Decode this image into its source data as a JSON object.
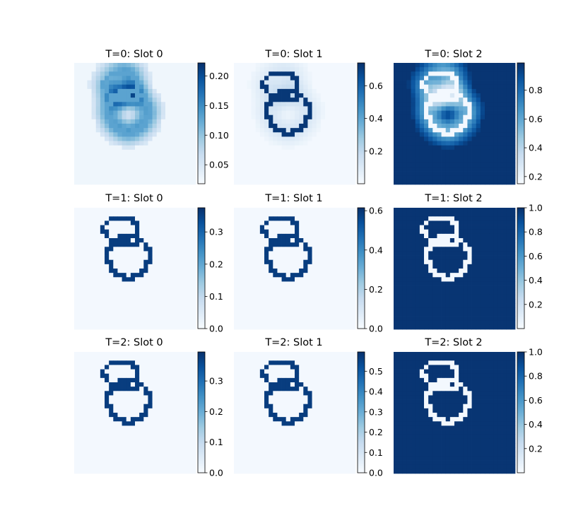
{
  "colormap": {
    "name": "Blues",
    "stops": [
      "#f7fbff",
      "#deebf7",
      "#c6dbef",
      "#9ecae1",
      "#6baed6",
      "#4292c6",
      "#2171b5",
      "#08519c",
      "#08306b"
    ]
  },
  "chart_data": [
    {
      "type": "heatmap",
      "title": "T=0: Slot 0",
      "colorbar": {
        "range": [
          0.018,
          0.222
        ],
        "ticks": [
          "0.05",
          "0.10",
          "0.15",
          "0.20"
        ],
        "tick_values": [
          0.05,
          0.1,
          0.15,
          0.2
        ]
      }
    },
    {
      "type": "heatmap",
      "title": "T=0: Slot 1",
      "colorbar": {
        "range": [
          0.0,
          0.74
        ],
        "ticks": [
          "0.2",
          "0.4",
          "0.6"
        ],
        "tick_values": [
          0.2,
          0.4,
          0.6
        ]
      }
    },
    {
      "type": "heatmap",
      "title": "T=0: Slot 2",
      "colorbar": {
        "range": [
          0.15,
          0.99
        ],
        "ticks": [
          "0.2",
          "0.4",
          "0.6",
          "0.8"
        ],
        "tick_values": [
          0.2,
          0.4,
          0.6,
          0.8
        ]
      }
    },
    {
      "type": "heatmap",
      "title": "T=1: Slot 0",
      "colorbar": {
        "range": [
          0.0,
          0.375
        ],
        "ticks": [
          "0.0",
          "0.1",
          "0.2",
          "0.3"
        ],
        "tick_values": [
          0.0,
          0.1,
          0.2,
          0.3
        ]
      }
    },
    {
      "type": "heatmap",
      "title": "T=1: Slot 1",
      "colorbar": {
        "range": [
          0.0,
          0.615
        ],
        "ticks": [
          "0.0",
          "0.2",
          "0.4",
          "0.6"
        ],
        "tick_values": [
          0.0,
          0.2,
          0.4,
          0.6
        ]
      }
    },
    {
      "type": "heatmap",
      "title": "T=1: Slot 2",
      "colorbar": {
        "range": [
          0.0,
          1.0
        ],
        "ticks": [
          "0.2",
          "0.4",
          "0.6",
          "0.8",
          "1.0"
        ],
        "tick_values": [
          0.2,
          0.4,
          0.6,
          0.8,
          1.0
        ]
      }
    },
    {
      "type": "heatmap",
      "title": "T=2: Slot 0",
      "colorbar": {
        "range": [
          0.0,
          0.395
        ],
        "ticks": [
          "0.0",
          "0.1",
          "0.2",
          "0.3"
        ],
        "tick_values": [
          0.0,
          0.1,
          0.2,
          0.3
        ]
      }
    },
    {
      "type": "heatmap",
      "title": "T=2: Slot 1",
      "colorbar": {
        "range": [
          0.0,
          0.595
        ],
        "ticks": [
          "0.0",
          "0.1",
          "0.2",
          "0.3",
          "0.4",
          "0.5"
        ],
        "tick_values": [
          0.0,
          0.1,
          0.2,
          0.3,
          0.4,
          0.5
        ]
      }
    },
    {
      "type": "heatmap",
      "title": "T=2: Slot 2",
      "colorbar": {
        "range": [
          0.0,
          1.0
        ],
        "ticks": [
          "0.2",
          "0.4",
          "0.6",
          "0.8",
          "1.0"
        ],
        "tick_values": [
          0.2,
          0.4,
          0.6,
          0.8,
          1.0
        ]
      }
    }
  ]
}
